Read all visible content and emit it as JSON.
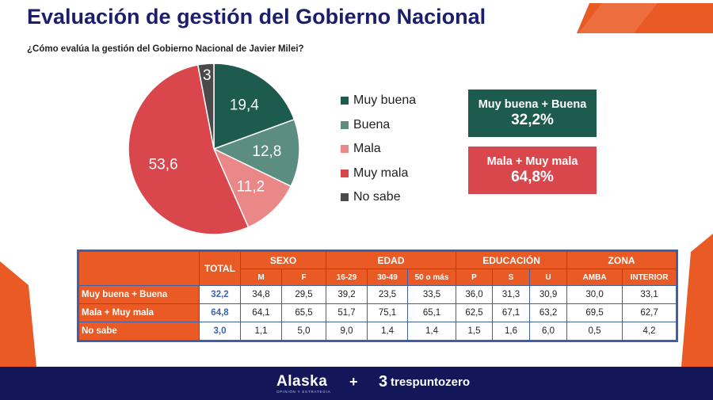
{
  "title": "Evaluación de gestión del Gobierno Nacional",
  "subtitle": "¿Cómo evalúa la gestión del Gobierno Nacional de Javier Milei?",
  "colors": {
    "muy_buena": "#1e5b4f",
    "buena": "#5b8d80",
    "mala": "#ea8787",
    "muy_mala": "#d9474d",
    "no_sabe": "#4a4a4a",
    "accent_orange": "#ea5a24",
    "navy": "#13175a"
  },
  "chart_data": {
    "type": "pie",
    "title": "",
    "slices": [
      {
        "label": "Muy buena",
        "value": 19.4,
        "display": "19,4",
        "color": "#1e5b4f"
      },
      {
        "label": "Buena",
        "value": 12.8,
        "display": "12,8",
        "color": "#5b8d80"
      },
      {
        "label": "Mala",
        "value": 11.2,
        "display": "11,2",
        "color": "#ea8787"
      },
      {
        "label": "Muy mala",
        "value": 53.6,
        "display": "53,6",
        "color": "#d9474d"
      },
      {
        "label": "No sabe",
        "value": 3,
        "display": "3",
        "color": "#4a4a4a"
      }
    ],
    "legend_position": "right"
  },
  "summary": {
    "positive": {
      "label": "Muy buena + Buena",
      "value": "32,2%"
    },
    "negative": {
      "label": "Mala + Muy mala",
      "value": "64,8%"
    }
  },
  "table": {
    "total_label": "TOTAL",
    "groups": [
      {
        "label": "SEXO",
        "subs": [
          "M",
          "F"
        ]
      },
      {
        "label": "EDAD",
        "subs": [
          "16-29",
          "30-49",
          "50 o más"
        ]
      },
      {
        "label": "EDUCACIÓN",
        "subs": [
          "P",
          "S",
          "U"
        ]
      },
      {
        "label": "ZONA",
        "subs": [
          "AMBA",
          "INTERIOR"
        ]
      }
    ],
    "rows": [
      {
        "label": "Muy buena + Buena",
        "total": "32,2",
        "values": [
          "34,8",
          "29,5",
          "39,2",
          "23,5",
          "33,5",
          "36,0",
          "31,3",
          "30,9",
          "30,0",
          "33,1"
        ]
      },
      {
        "label": "Mala + Muy mala",
        "total": "64,8",
        "values": [
          "64,1",
          "65,5",
          "51,7",
          "75,1",
          "65,1",
          "62,5",
          "67,1",
          "63,2",
          "69,5",
          "62,7"
        ]
      },
      {
        "label": "No sabe",
        "total": "3,0",
        "values": [
          "1,1",
          "5,0",
          "9,0",
          "1,4",
          "1,4",
          "1,5",
          "1,6",
          "6,0",
          "0,5",
          "4,2"
        ]
      }
    ]
  },
  "footer": {
    "brand1": "Alaska",
    "brand1_sub": "OPINIÓN Y ESTRATEGIA",
    "plus": "+",
    "brand2_mark": "3",
    "brand2": "trespuntozero"
  }
}
